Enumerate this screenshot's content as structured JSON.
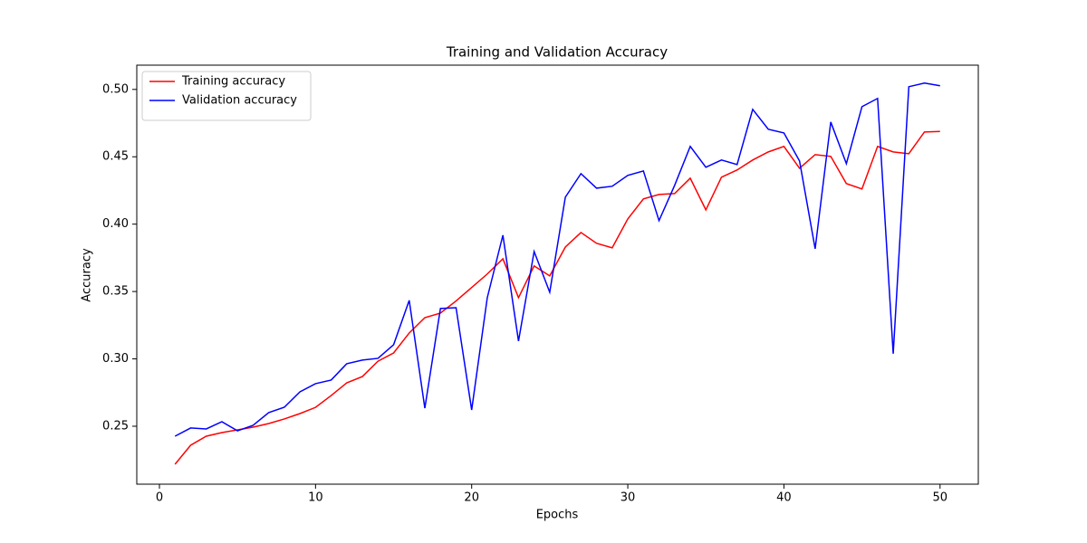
{
  "chart_data": {
    "type": "line",
    "title": "Training and Validation Accuracy",
    "xlabel": "Epochs",
    "ylabel": "Accuracy",
    "x": [
      1,
      2,
      3,
      4,
      5,
      6,
      7,
      8,
      9,
      10,
      11,
      12,
      13,
      14,
      15,
      16,
      17,
      18,
      19,
      20,
      21,
      22,
      23,
      24,
      25,
      26,
      27,
      28,
      29,
      30,
      31,
      32,
      33,
      34,
      35,
      36,
      37,
      38,
      39,
      40,
      41,
      42,
      43,
      44,
      45,
      46,
      47,
      48,
      49,
      50
    ],
    "series": [
      {
        "name": "Training accuracy",
        "color": "red",
        "values": [
          0.2218,
          0.2359,
          0.2426,
          0.2453,
          0.2473,
          0.2493,
          0.252,
          0.2554,
          0.2594,
          0.264,
          0.2728,
          0.2822,
          0.2869,
          0.2983,
          0.3044,
          0.3192,
          0.3306,
          0.334,
          0.343,
          0.353,
          0.363,
          0.3743,
          0.3454,
          0.369,
          0.3616,
          0.383,
          0.3938,
          0.3858,
          0.3824,
          0.4039,
          0.4187,
          0.422,
          0.4227,
          0.4341,
          0.4106,
          0.4348,
          0.4402,
          0.4476,
          0.4536,
          0.4577,
          0.4415,
          0.4516,
          0.4503,
          0.4301,
          0.4261,
          0.4577,
          0.4536,
          0.4523,
          0.4684,
          0.4688
        ]
      },
      {
        "name": "Validation accuracy",
        "color": "blue",
        "values": [
          0.2426,
          0.2487,
          0.248,
          0.2534,
          0.2466,
          0.2507,
          0.2601,
          0.2641,
          0.2755,
          0.2816,
          0.2843,
          0.2964,
          0.2991,
          0.3004,
          0.3105,
          0.3434,
          0.2634,
          0.3374,
          0.338,
          0.2621,
          0.3454,
          0.3918,
          0.3132,
          0.3797,
          0.3495,
          0.42,
          0.4375,
          0.4267,
          0.4281,
          0.4362,
          0.4395,
          0.4026,
          0.4288,
          0.4577,
          0.4422,
          0.4476,
          0.4442,
          0.4852,
          0.4704,
          0.4677,
          0.4469,
          0.3817,
          0.4758,
          0.4449,
          0.4872,
          0.4933,
          0.3038,
          0.502,
          0.5047,
          0.5027
        ]
      }
    ],
    "xlim": [
      -1.45,
      52.45
    ],
    "xticks": [
      0,
      10,
      20,
      30,
      40,
      50
    ],
    "ylim": [
      0.207,
      0.518
    ],
    "yticks": [
      0.25,
      {
        "value": 0.3,
        "label": "0.30"
      },
      0.35,
      {
        "value": 0.4,
        "label": "0.40"
      },
      0.45,
      {
        "value": 0.5,
        "label": "0.50"
      }
    ],
    "grid": false,
    "legend": "upper left"
  }
}
